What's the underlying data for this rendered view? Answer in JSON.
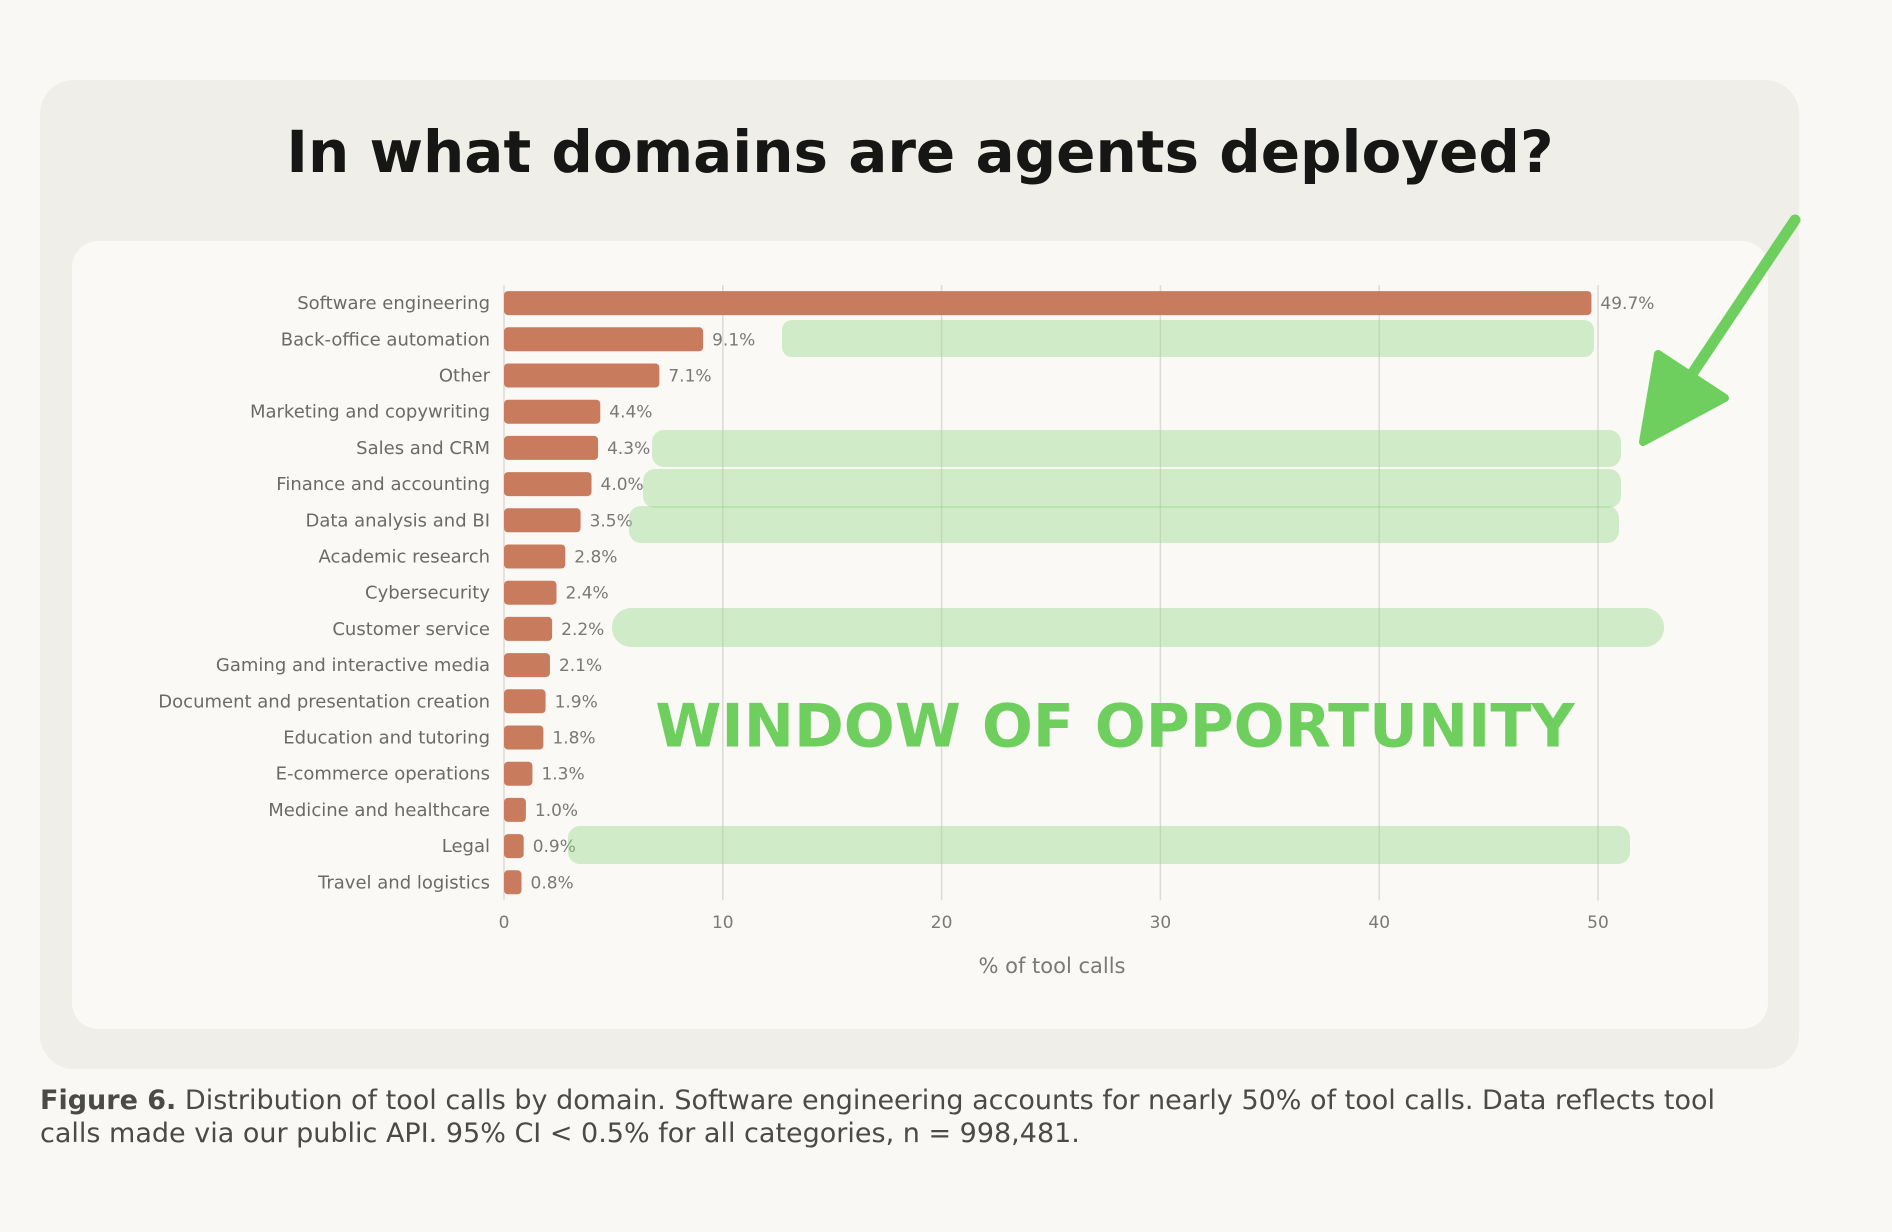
{
  "chart_data": {
    "type": "bar",
    "orientation": "horizontal",
    "title": "In what domains are agents deployed?",
    "xlabel": "% of tool calls",
    "annotation": "WINDOW OF OPPORTUNITY",
    "categories": [
      "Software engineering",
      "Back-office automation",
      "Other",
      "Marketing and copywriting",
      "Sales and CRM",
      "Finance and accounting",
      "Data analysis and BI",
      "Academic research",
      "Cybersecurity",
      "Customer service",
      "Gaming and interactive media",
      "Document and presentation creation",
      "Education and tutoring",
      "E-commerce operations",
      "Medicine and healthcare",
      "Legal",
      "Travel and logistics"
    ],
    "values": [
      49.7,
      9.1,
      7.1,
      4.4,
      4.3,
      4.0,
      3.5,
      2.8,
      2.4,
      2.2,
      2.1,
      1.9,
      1.8,
      1.3,
      1.0,
      0.9,
      0.8
    ],
    "value_labels": [
      "49.7%",
      "9.1%",
      "7.1%",
      "4.4%",
      "4.3%",
      "4.0%",
      "3.5%",
      "2.8%",
      "2.4%",
      "2.2%",
      "2.1%",
      "1.9%",
      "1.8%",
      "1.3%",
      "1.0%",
      "0.9%",
      "0.8%"
    ],
    "color": "#c97b5e",
    "xlim": [
      0,
      50
    ],
    "xticks": [
      0,
      10,
      20,
      30,
      40,
      50
    ],
    "grid": true
  },
  "caption": {
    "label": "Figure 6.",
    "text": "Distribution of tool calls by domain. Software engineering accounts for nearly 50% of tool calls. Data reflects tool calls made via our public API. 95% CI < 0.5% for all categories, n = 998,481."
  }
}
